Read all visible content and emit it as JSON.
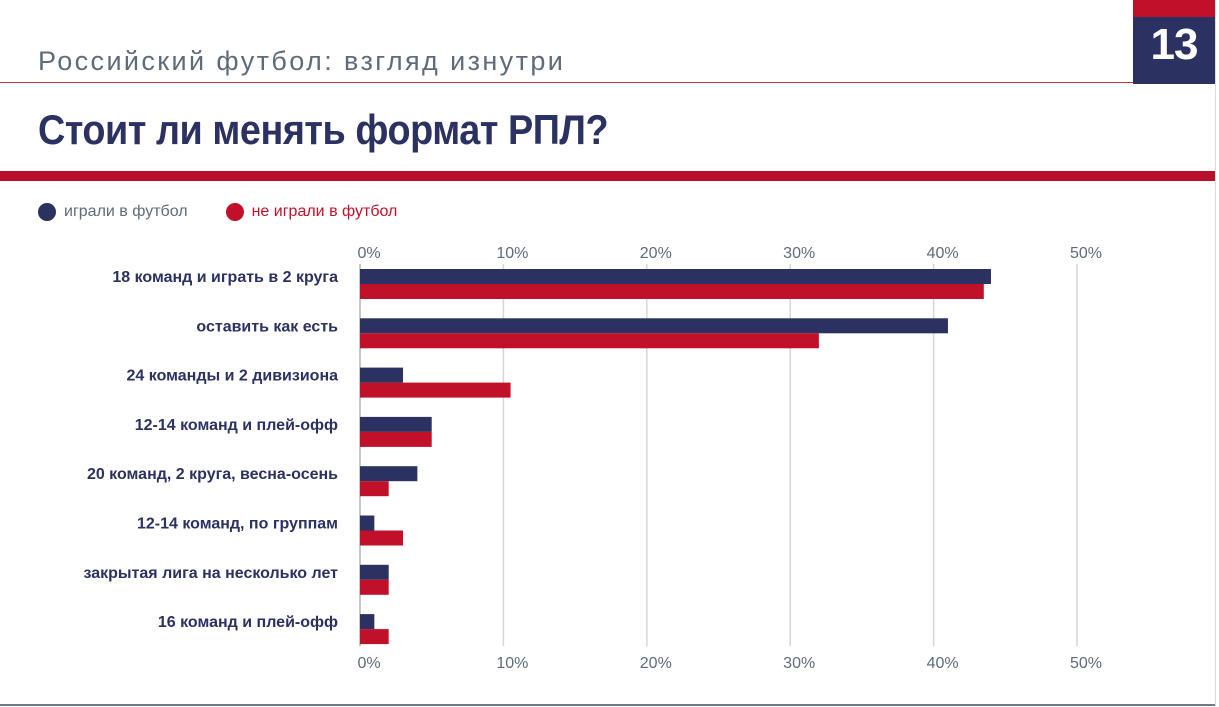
{
  "header": {
    "subtitle": "Российский футбол: взгляд изнутри",
    "page_number": "13",
    "title": "Стоит ли менять формат РПЛ?"
  },
  "colors": {
    "navy": "#2b3160",
    "red": "#c0102a",
    "grid": "#d6d6d6",
    "axis_text": "#5d6b7a"
  },
  "chart_data": {
    "type": "bar",
    "orientation": "horizontal",
    "title": "Стоит ли менять формат РПЛ?",
    "categories": [
      "18 команд и играть в 2 круга",
      "оставить как есть",
      "24 команды и 2 дивизиона",
      "12-14 команд и плей-офф",
      "20 команд, 2 круга, весна-осень",
      "12-14 команд, по группам",
      "закрытая лига на несколько лет",
      "16 команд и плей-офф"
    ],
    "series": [
      {
        "name": "играли в футбол",
        "color": "#2b3160",
        "values": [
          44,
          41,
          3,
          5,
          4,
          1,
          2,
          1
        ]
      },
      {
        "name": "не играли в футбол",
        "color": "#c0102a",
        "values": [
          43.5,
          32,
          10.5,
          5,
          2,
          3,
          2,
          2
        ]
      }
    ],
    "xlim": [
      0,
      50
    ],
    "xticks": [
      0,
      10,
      20,
      30,
      40,
      50
    ],
    "tick_labels": [
      "0%",
      "10%",
      "20%",
      "30%",
      "40%",
      "50%"
    ],
    "grid": true,
    "legend_position": "top-left",
    "xlabel": "",
    "ylabel": ""
  }
}
